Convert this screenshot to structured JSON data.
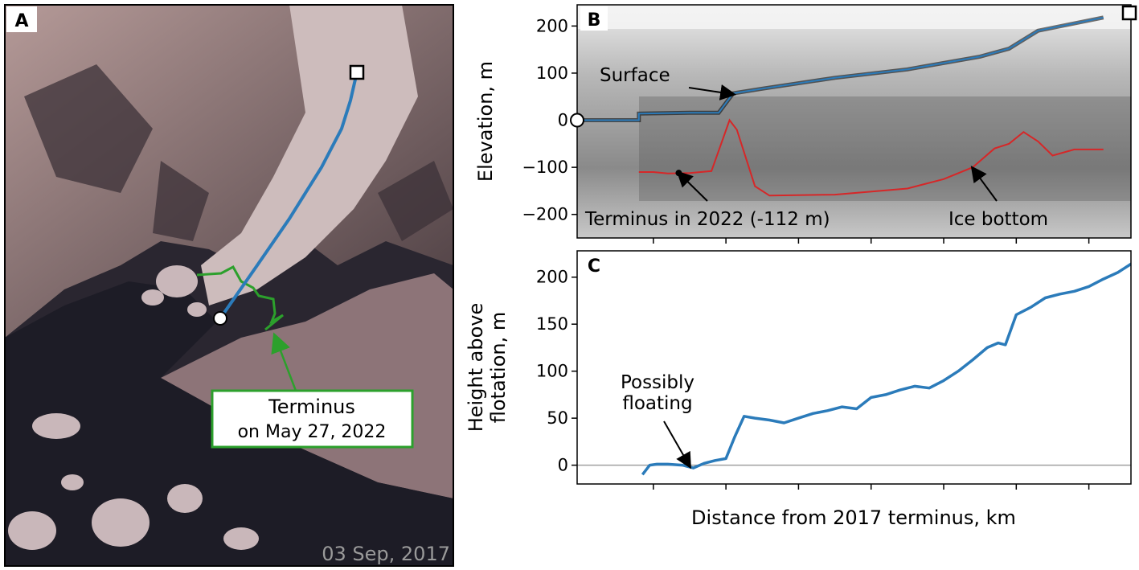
{
  "panel_labels": {
    "a": "A",
    "b": "B",
    "c": "C"
  },
  "map": {
    "date_stamp": "03 Sep, 2017",
    "terminus_label_line1": "Terminus",
    "terminus_label_line2": "on May 27, 2022"
  },
  "shared_xlabel": "Distance from 2017 terminus, km",
  "colors": {
    "profile_line": "#2b7bba",
    "terminus_2022": "#2ca02c",
    "ice_bottom": "#d62728"
  },
  "chart_data": [
    {
      "type": "line",
      "panel": "B",
      "ylabel": "Elevation, m",
      "ylim": [
        -250,
        245
      ],
      "yticks": [
        200,
        100,
        0,
        -100,
        -200
      ],
      "x_tick_positions": [
        1,
        2,
        3,
        4,
        5,
        6,
        7
      ],
      "x_tick_labels": [],
      "series": [
        {
          "name": "Surface",
          "x": [
            0,
            0.8,
            0.8,
            1.5,
            1.9,
            2.1,
            2.5,
            3.5,
            4.5,
            5.5,
            5.9,
            6.3,
            7.2
          ],
          "y": [
            0,
            0,
            14,
            16,
            16,
            57,
            67,
            90,
            108,
            135,
            152,
            190,
            218
          ]
        },
        {
          "name": "Ice bottom",
          "x": [
            0.8,
            1.0,
            1.2,
            1.5,
            1.8,
            2.05,
            2.15,
            2.4,
            2.6,
            3.5,
            4.5,
            5.0,
            5.4,
            5.7,
            5.9,
            6.1,
            6.3,
            6.5,
            6.8,
            7.2
          ],
          "y": [
            -110,
            -110,
            -113,
            -112,
            -108,
            0,
            -20,
            -140,
            -160,
            -158,
            -145,
            -125,
            -100,
            -60,
            -50,
            -25,
            -45,
            -75,
            -62,
            -62
          ]
        }
      ],
      "markers": [
        {
          "label": "",
          "shape": "circle",
          "x": 0,
          "y": 0
        },
        {
          "label": "",
          "shape": "square",
          "x": 7.5,
          "y": 218
        },
        {
          "label": "",
          "shape": "dot",
          "x": 1.35,
          "y": -112
        }
      ],
      "annotations": [
        {
          "text": "Surface",
          "x": 1.0,
          "y": 100,
          "arrow_to_x": 2.1,
          "arrow_to_y": 55
        },
        {
          "text": "Terminus in 2022 (-112 m)",
          "x": 0.1,
          "y": -225,
          "arrow_to_x": 1.35,
          "arrow_to_y": -112
        },
        {
          "text": "Ice bottom",
          "x": 5.0,
          "y": -225,
          "arrow_to_x": 5.4,
          "arrow_to_y": -102
        }
      ]
    },
    {
      "type": "line",
      "panel": "C",
      "ylabel_line1": "Height above",
      "ylabel_line2": "flotation, m",
      "ylim": [
        -20,
        228
      ],
      "yticks": [
        0,
        50,
        100,
        150,
        200
      ],
      "x_tick_positions": [
        1,
        2,
        3,
        4,
        5,
        6,
        7
      ],
      "x_tick_labels": [],
      "reference_line_y": 0,
      "series": [
        {
          "name": "",
          "x": [
            0.85,
            0.95,
            1.05,
            1.2,
            1.4,
            1.55,
            1.7,
            1.85,
            2.0,
            2.12,
            2.25,
            2.4,
            2.6,
            2.8,
            3.0,
            3.2,
            3.4,
            3.6,
            3.8,
            4.0,
            4.2,
            4.4,
            4.6,
            4.8,
            5.0,
            5.2,
            5.4,
            5.6,
            5.75,
            5.85,
            6.0,
            6.2,
            6.4,
            6.6,
            6.8,
            7.0,
            7.2,
            7.4,
            7.6
          ],
          "y": [
            -10,
            0,
            1,
            1,
            0,
            -3,
            2,
            5,
            7,
            30,
            52,
            50,
            48,
            45,
            50,
            55,
            58,
            62,
            60,
            72,
            75,
            80,
            84,
            82,
            90,
            100,
            112,
            125,
            130,
            128,
            160,
            168,
            178,
            182,
            185,
            190,
            198,
            205,
            215
          ]
        }
      ],
      "annotations": [
        {
          "text_line1": "Possibly",
          "text_line2": "floating",
          "x": 1.2,
          "y": 75,
          "arrow_to_x": 1.5,
          "arrow_to_y": -1
        }
      ]
    }
  ]
}
